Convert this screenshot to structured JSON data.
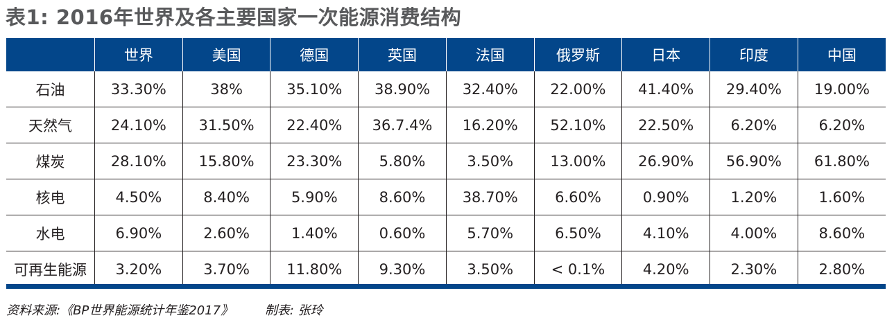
{
  "title": "表1: 2016年世界及各主要国家一次能源消费结构",
  "columns": [
    "",
    "世界",
    "美国",
    "德国",
    "英国",
    "法国",
    "俄罗斯",
    "日本",
    "印度",
    "中国"
  ],
  "rows": [
    {
      "label": "石油",
      "values": [
        "33.30%",
        "38%",
        "35.10%",
        "38.90%",
        "32.40%",
        "22.00%",
        "41.40%",
        "29.40%",
        "19.00%"
      ]
    },
    {
      "label": "天然气",
      "values": [
        "24.10%",
        "31.50%",
        "22.40%",
        "36.7.4%",
        "16.20%",
        "52.10%",
        "22.50%",
        "6.20%",
        "6.20%"
      ]
    },
    {
      "label": "煤炭",
      "values": [
        "28.10%",
        "15.80%",
        "23.30%",
        "5.80%",
        "3.50%",
        "13.00%",
        "26.90%",
        "56.90%",
        "61.80%"
      ]
    },
    {
      "label": "核电",
      "values": [
        "4.50%",
        "8.40%",
        "5.90%",
        "8.60%",
        "38.70%",
        "6.60%",
        "0.90%",
        "1.20%",
        "1.60%"
      ]
    },
    {
      "label": "水电",
      "values": [
        "6.90%",
        "2.60%",
        "1.40%",
        "0.60%",
        "5.70%",
        "6.50%",
        "4.10%",
        "4.00%",
        "8.60%"
      ]
    },
    {
      "label": "可再生能源",
      "values": [
        "3.20%",
        "3.70%",
        "11.80%",
        "9.30%",
        "3.50%",
        "< 0.1%",
        "4.20%",
        "2.30%",
        "2.80%"
      ]
    }
  ],
  "footer": {
    "source": "资料来源:《BP世界能源统计年鉴2017》",
    "author": "制表: 张玲"
  },
  "colors": {
    "header_bg": "#03468a",
    "title": "#58595b"
  }
}
